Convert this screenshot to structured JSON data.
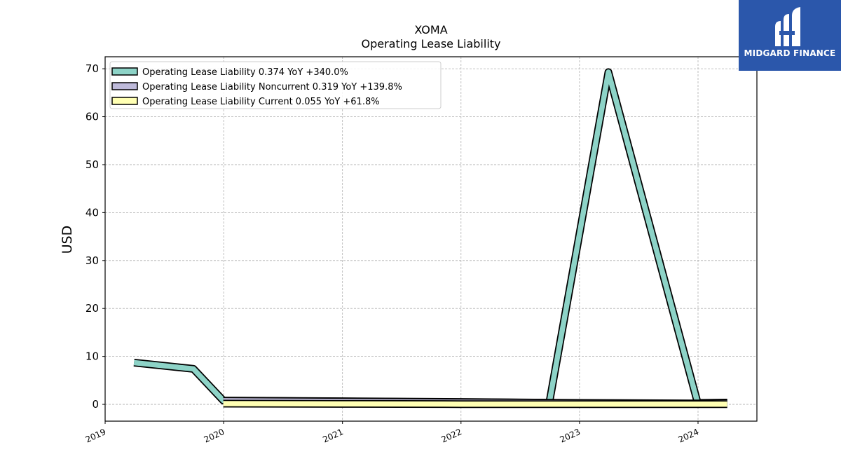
{
  "chart_data": {
    "type": "area",
    "title": "XOMA",
    "subtitle": "Operating Lease Liability",
    "xlabel": "",
    "ylabel": "USD",
    "x_ticks": [
      "2019",
      "2020",
      "2021",
      "2022",
      "2023",
      "2024"
    ],
    "y_ticks": [
      0,
      10,
      20,
      30,
      40,
      50,
      60,
      70
    ],
    "ylim": [
      -3.5,
      72.5
    ],
    "grid": true,
    "legend_position": "top-left",
    "series": [
      {
        "name": "Operating Lease Liability",
        "legend": "Operating Lease Liability  0.374 YoY +340.0%",
        "color": "#8dd3c7",
        "points": [
          {
            "x": "2019-03-31",
            "y": 8.7
          },
          {
            "x": "2019-09-30",
            "y": 7.4
          },
          {
            "x": "2019-12-31",
            "y": 0.8
          },
          {
            "x": "2020-12-31",
            "y": 0.65
          },
          {
            "x": "2021-12-31",
            "y": 0.5
          },
          {
            "x": "2022-09-30",
            "y": 0.35
          },
          {
            "x": "2023-03-31",
            "y": 69.3
          },
          {
            "x": "2023-12-31",
            "y": 0.3
          },
          {
            "x": "2024-03-31",
            "y": 0.374
          }
        ]
      },
      {
        "name": "Operating Lease Liability Noncurrent",
        "legend": "Operating Lease Liability Noncurrent  0.319 YoY +139.8%",
        "color": "#bebada",
        "points": [
          {
            "x": "2019-12-31",
            "y": 0.75
          },
          {
            "x": "2020-12-31",
            "y": 0.6
          },
          {
            "x": "2021-12-31",
            "y": 0.45
          },
          {
            "x": "2022-12-31",
            "y": 0.3
          },
          {
            "x": "2023-12-31",
            "y": 0.2
          },
          {
            "x": "2024-03-31",
            "y": 0.319
          }
        ]
      },
      {
        "name": "Operating Lease Liability Current",
        "legend": "Operating Lease Liability Current  0.055 YoY +61.8%",
        "color": "#ffffb3",
        "points": [
          {
            "x": "2019-12-31",
            "y": 0.15
          },
          {
            "x": "2020-12-31",
            "y": 0.1
          },
          {
            "x": "2021-12-31",
            "y": 0.05
          },
          {
            "x": "2022-12-31",
            "y": 0.03
          },
          {
            "x": "2023-12-31",
            "y": 0.04
          },
          {
            "x": "2024-03-31",
            "y": 0.055
          }
        ]
      }
    ]
  },
  "logo": {
    "text": "MIDGARD FINANCE",
    "background": "#2b57ab"
  }
}
